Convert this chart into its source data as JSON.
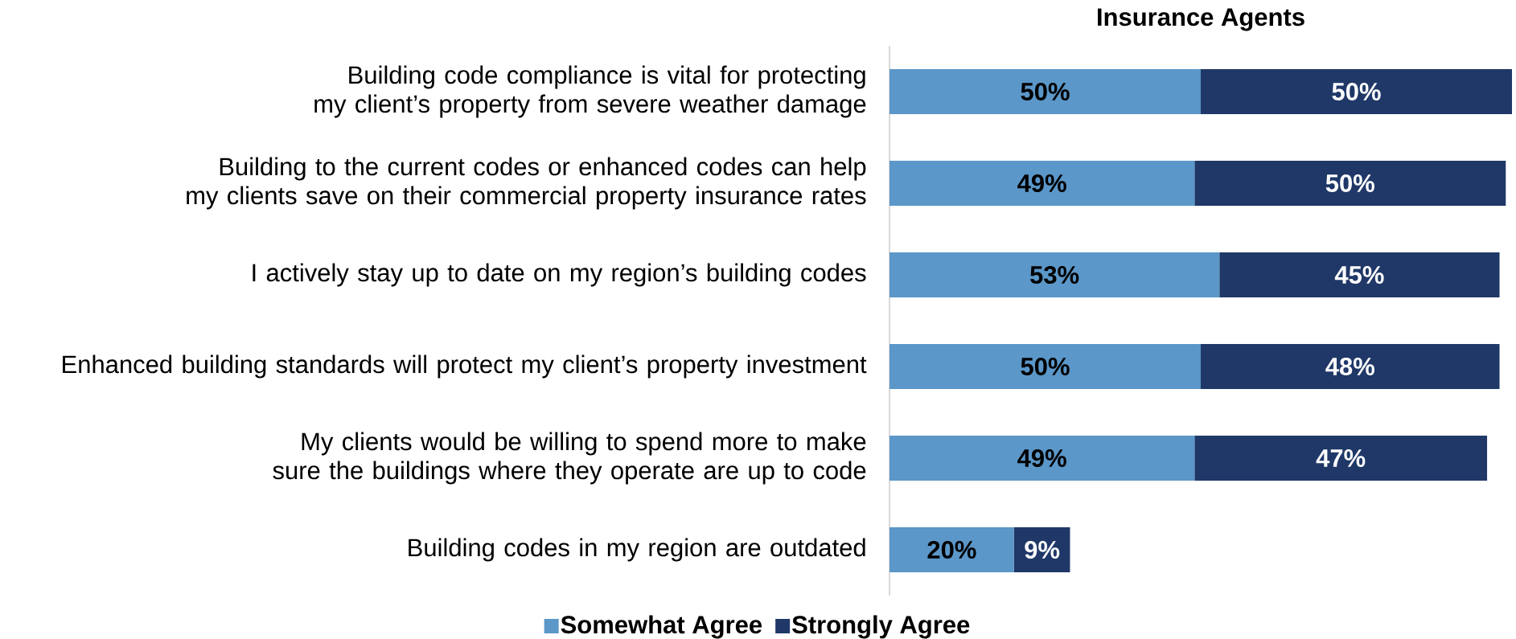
{
  "chart_data": {
    "type": "bar",
    "orientation": "horizontal",
    "stacked": true,
    "title": "Insurance Agents",
    "categories": [
      "Building code compliance is vital for protecting my client’s property from severe weather damage",
      "Building to the current codes or enhanced codes can help my clients save on their commercial property insurance rates",
      "I actively stay up to date on my region’s building codes",
      "Enhanced building standards will protect my client’s property investment",
      "My clients would be willing to spend more to make sure the buildings where they operate are up to code",
      "Building codes in my region are outdated"
    ],
    "series": [
      {
        "name": "Somewhat Agree",
        "color": "#5b97c9",
        "values": [
          50,
          49,
          53,
          50,
          49,
          20
        ],
        "value_labels": [
          "50%",
          "49%",
          "53%",
          "50%",
          "49%",
          "20%"
        ]
      },
      {
        "name": "Strongly Agree",
        "color": "#1f3868",
        "values": [
          50,
          50,
          45,
          48,
          47,
          9
        ],
        "value_labels": [
          "50%",
          "50%",
          "45%",
          "48%",
          "47%",
          "9%"
        ]
      }
    ],
    "legend": "bottom"
  }
}
